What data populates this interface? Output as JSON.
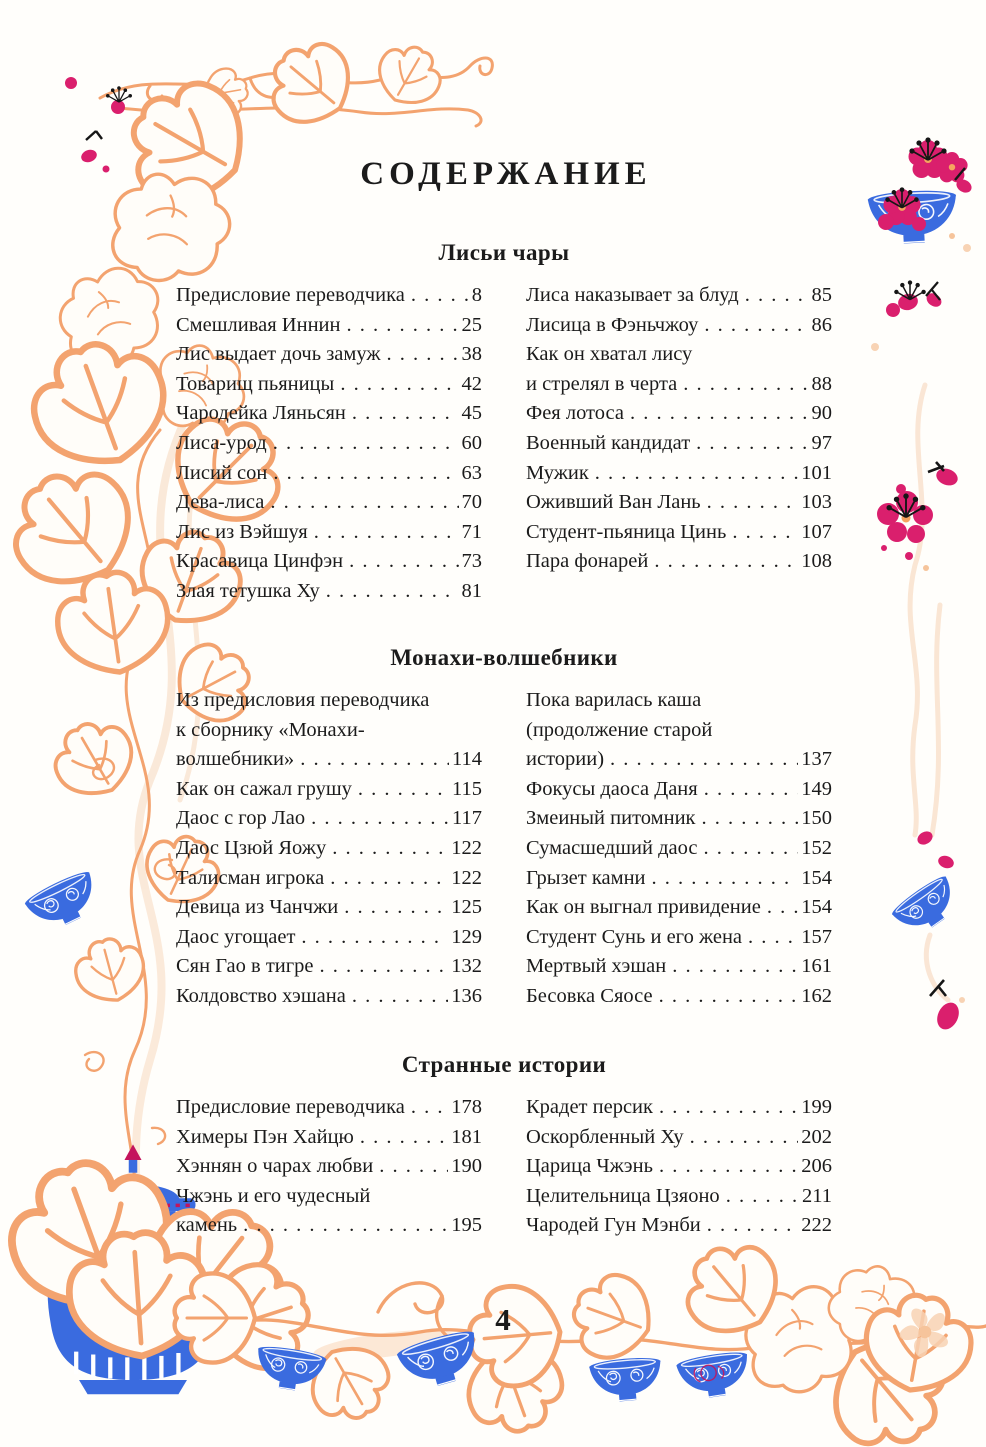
{
  "page": {
    "title": "СОДЕРЖАНИЕ",
    "page_number": "4"
  },
  "colors": {
    "accent_orange": "#F3A36F",
    "pale_orange": "#F8D6BC",
    "porcelain_blue": "#3A6BDF",
    "blossom_pink": "#DA1F6D",
    "text": "#1B1B1B"
  },
  "decorations": {
    "left_border": "orange floral vine with peony blossoms and leaves",
    "top_vine": "orange vine tendril across top",
    "top_right": "blue porcelain bowl with magenta plum blossoms",
    "right_margin": "magenta plum blossoms, buds and tilted blue bowl",
    "bottom_band": "blue porcelain jar, blue bowls and horizontal floral vine",
    "bottom_right_flower": "pale five-petal flower"
  },
  "sections": [
    {
      "heading": "Лисьи чары",
      "columns": [
        [
          {
            "text": "Предисловие переводчика",
            "page": "8"
          },
          {
            "text": "Смешливая Иннин",
            "page": "25"
          },
          {
            "text": "Лис выдает дочь замуж",
            "page": "38"
          },
          {
            "text": "Товарищ пьяницы",
            "page": "42"
          },
          {
            "text": "Чародейка Ляньсян",
            "page": "45"
          },
          {
            "text": "Лиса-урод",
            "page": "60"
          },
          {
            "text": "Лисий сон",
            "page": "63"
          },
          {
            "text": "Дева-лиса",
            "page": "70"
          },
          {
            "text": "Лис из Вэйшуя",
            "page": "71"
          },
          {
            "text": "Красавица Цинфэн",
            "page": "73"
          },
          {
            "text": "Злая тетушка Ху",
            "page": "81"
          }
        ],
        [
          {
            "text": "Лиса наказывает за блуд",
            "page": "85"
          },
          {
            "text": "Лисица в Фэньчжоу",
            "page": "86"
          },
          {
            "text": "Как он хватал лису",
            "page": null
          },
          {
            "text": "и стрелял в черта",
            "page": "88"
          },
          {
            "text": "Фея лотоса",
            "page": "90"
          },
          {
            "text": "Военный кандидат",
            "page": "97"
          },
          {
            "text": "Мужик",
            "page": "101"
          },
          {
            "text": "Оживший Ван Лань",
            "page": "103"
          },
          {
            "text": "Студент-пьяница Цинь",
            "page": "107"
          },
          {
            "text": "Пара фонарей",
            "page": "108"
          }
        ]
      ]
    },
    {
      "heading": "Монахи-волшебники",
      "columns": [
        [
          {
            "text": "Из предисловия переводчика",
            "page": null
          },
          {
            "text": "к сборнику «Монахи-",
            "page": null
          },
          {
            "text": "волшебники»",
            "page": "114"
          },
          {
            "text": "Как он сажал грушу",
            "page": "115"
          },
          {
            "text": "Даос с гор Лао",
            "page": "117"
          },
          {
            "text": "Даос Цзюй Яожу",
            "page": "122"
          },
          {
            "text": "Талисман игрока",
            "page": "122"
          },
          {
            "text": "Девица из Чанчжи",
            "page": "125"
          },
          {
            "text": "Даос угощает",
            "page": "129"
          },
          {
            "text": "Сян Гао в тигре",
            "page": "132"
          },
          {
            "text": "Колдовство хэшана",
            "page": "136"
          }
        ],
        [
          {
            "text": "Пока варилась каша",
            "page": null
          },
          {
            "text": "(продолжение старой",
            "page": null
          },
          {
            "text": "истории)",
            "page": "137"
          },
          {
            "text": "Фокусы даоса Даня",
            "page": "149"
          },
          {
            "text": "Змеиный питомник",
            "page": "150"
          },
          {
            "text": "Сумасшедший даос",
            "page": "152"
          },
          {
            "text": "Грызет камни",
            "page": "154"
          },
          {
            "text": "Как он выгнал привидение",
            "page": "154"
          },
          {
            "text": "Студент Сунь и его жена",
            "page": "157"
          },
          {
            "text": "Мертвый хэшан",
            "page": "161"
          },
          {
            "text": "Бесовка Сяосе",
            "page": "162"
          }
        ]
      ]
    },
    {
      "heading": "Странные истории",
      "columns": [
        [
          {
            "text": "Предисловие переводчика",
            "page": "178"
          },
          {
            "text": "Химеры Пэн Хайцю",
            "page": "181"
          },
          {
            "text": "Хэннян о чарах любви",
            "page": "190"
          },
          {
            "text": "Чжэнь и его чудесный",
            "page": null
          },
          {
            "text": "камень",
            "page": "195"
          }
        ],
        [
          {
            "text": "Крадет персик",
            "page": "199"
          },
          {
            "text": "Оскорбленный Ху",
            "page": "202"
          },
          {
            "text": "Царица Чжэнь",
            "page": "206"
          },
          {
            "text": "Целительница Цзяоно",
            "page": "211"
          },
          {
            "text": "Чародей Гун Мэнби",
            "page": "222"
          }
        ]
      ]
    }
  ]
}
